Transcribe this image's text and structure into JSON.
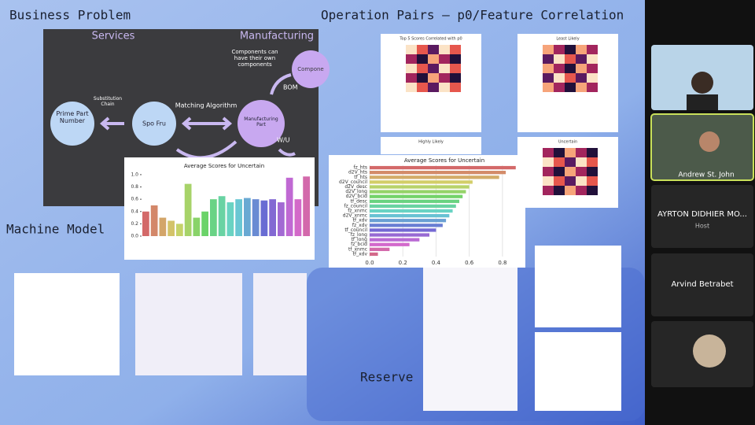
{
  "slides": {
    "business_problem": {
      "title": "Business Problem",
      "services": "Services",
      "manufacturing": "Manufacturing",
      "components_note": "Components can have their own components",
      "components": "Compone",
      "substitution_chain": "Substitution Chain",
      "matching_algorithm": "Matching Algorithm",
      "prime_part_number": "Prime Part Number",
      "spo_fru": "Spo Fru",
      "manufacturing_part": "Manufacturing Part",
      "bom": "BOM",
      "wu": "W/U"
    },
    "operation_pairs": {
      "title": "Operation Pairs – p0/Feature Correlation",
      "heatmaps": [
        "Top 5 Scores Correlated with p0",
        "Least Likely",
        "Highly Likely",
        "Uncertain"
      ]
    },
    "machine_model": {
      "title": "Machine Model"
    },
    "reserve": {
      "title": "Reserve"
    }
  },
  "chart_data": [
    {
      "type": "bar",
      "title": "Average Scores for Uncertain",
      "categories": [
        null,
        null,
        null,
        null,
        null,
        null,
        null,
        null,
        null,
        null,
        null,
        null,
        null,
        null,
        null,
        null,
        null,
        null,
        null,
        null
      ],
      "values": [
        0.4,
        0.5,
        0.3,
        0.25,
        0.2,
        0.85,
        0.3,
        0.4,
        0.6,
        0.65,
        0.55,
        0.6,
        0.62,
        0.6,
        0.58,
        0.6,
        0.55,
        0.95,
        0.6,
        0.97
      ],
      "ylim": [
        0,
        1.05
      ],
      "yticks": [
        {
          "value": 0,
          "label": "0.0"
        },
        0.2,
        0.4,
        0.6,
        0.8,
        {
          "value": 1,
          "label": "1.0"
        }
      ]
    },
    {
      "type": "hbar",
      "title": "Average Scores for Uncertain",
      "categories": [
        "fz_hts",
        "d2V_hts",
        "tf_hts",
        "d2V_council",
        "d2V_desc",
        "d2V_long",
        "d2V_bcid",
        "tf_desc",
        "fz_council",
        "fz_xnmc",
        "d2V_xnmc",
        "tf_xdv",
        "fz_xdv",
        "tf_council",
        "fz_long",
        "tf_long",
        "fz_bcid",
        "tf_xnmc",
        "tf_xdv"
      ],
      "values": [
        0.88,
        0.82,
        0.78,
        0.62,
        0.6,
        0.58,
        0.56,
        0.54,
        0.52,
        0.5,
        0.48,
        0.46,
        0.44,
        0.4,
        0.36,
        0.3,
        0.24,
        0.12,
        0.05
      ],
      "xlim": [
        0,
        0.9
      ],
      "xticks": [
        {
          "value": 0,
          "label": "0.0"
        },
        0.2,
        0.4,
        0.6,
        0.8
      ]
    }
  ],
  "participants": [
    {
      "name": "Andrew St. John"
    },
    {
      "name": "AYRTON DIDHIER MO...",
      "role": "Host"
    },
    {
      "name": "Arvind Betrabet"
    }
  ]
}
